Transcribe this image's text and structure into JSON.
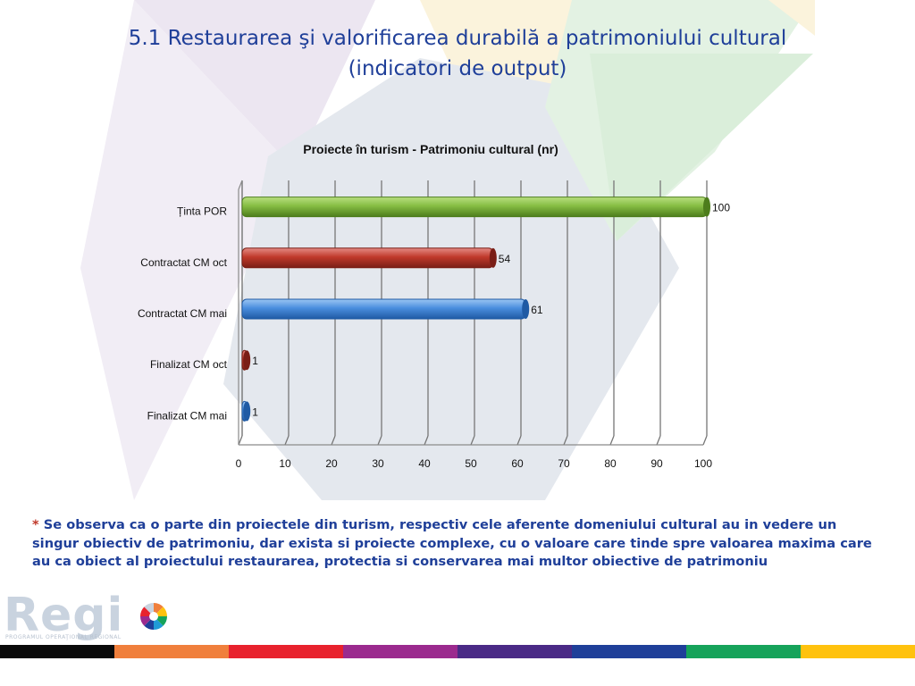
{
  "slide": {
    "title_line1": "5.1 Restaurarea şi valorificarea durabilă a patrimoniului cultural",
    "title_line2": "(indicatori de output)",
    "note_asterisk": "*",
    "note_text": " Se observa ca o parte din proiectele din turism, respectiv cele aferente domeniului cultural au in vedere un singur obiectiv de patrimoniu, dar exista si proiecte complexe, cu o valoare care tinde spre valoarea maxima care au ca obiect al proiectului restaurarea, protectia si conservarea mai multor obiective de patrimoniu"
  },
  "logo": {
    "text": "Regi",
    "subtitle": "PROGRAMUL OPERAŢIONAL REGIONAL"
  },
  "color_bar": [
    "#0a0a0a",
    "#f07f3c",
    "#e8222d",
    "#9b2a8e",
    "#4a2a86",
    "#1f3f99",
    "#16a35a",
    "#ffc20e"
  ],
  "chart_data": {
    "type": "bar",
    "orientation": "horizontal",
    "title": "Proiecte în turism - Patrimoniu cultural (nr)",
    "categories": [
      "Ținta POR",
      "Contractat CM oct",
      "Contractat CM mai",
      "Finalizat CM oct",
      "Finalizat CM mai"
    ],
    "values": [
      100,
      54,
      61,
      1,
      1
    ],
    "data_labels": [
      "100",
      "54",
      "61",
      "1",
      "1"
    ],
    "bar_colors": [
      "#7ab03a",
      "#c0392b",
      "#3c83d6",
      "#c0392b",
      "#3c83d6"
    ],
    "xlim": [
      0,
      100
    ],
    "xticks": [
      0,
      10,
      20,
      30,
      40,
      50,
      60,
      70,
      80,
      90,
      100
    ],
    "grid": true,
    "legend": "none"
  }
}
